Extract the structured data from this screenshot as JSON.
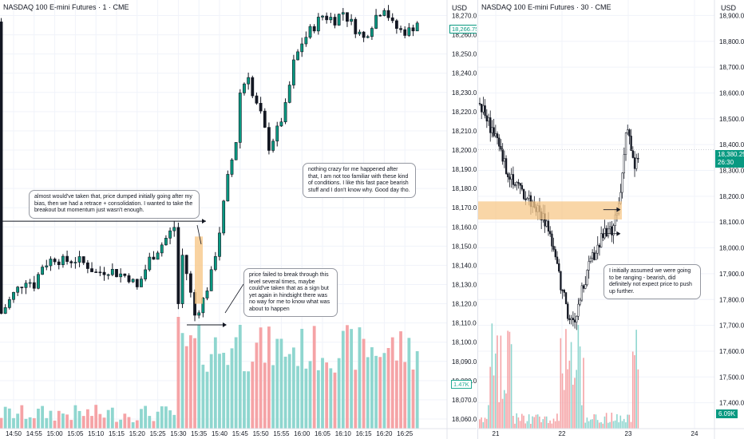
{
  "left_chart": {
    "title": "NASDAQ 100 E-mini Futures · 1 · CME",
    "currency": "USD",
    "last_price": "18,266.75",
    "volume_badge": "1.47K",
    "annotations": [
      "almost would've taken that, price dumped initially going after my bias, then we had a retrace + consolidation. I wanted to take the breakout but momentum just wasn't enough.",
      "nothing crazy for me happened after that, I am not too familiar with these kind of conditions. I like this fast pace bearish stuff and I don't know why. Good day tho.",
      "price failed to break through this level several times, maybe could've taken that as a sign but yet again in hindsight there was no way for me to know what was about to happen"
    ]
  },
  "right_chart": {
    "title": "NASDAQ 100 E-mini Futures · 30 · CME",
    "currency": "USD",
    "last_price": "18,380.25",
    "countdown": "26:30",
    "volume_badge": "6.09K",
    "annotations": [
      "I initially assumed we were going to be ranging - bearish, did definitely not expect price to push up further."
    ]
  },
  "chart_data": [
    {
      "type": "candlestick",
      "title": "NASDAQ 100 E-mini Futures · 1 · CME",
      "timeframe": "1",
      "y_axis_ticks": [
        18060,
        18070,
        18080,
        18090,
        18100,
        18110,
        18120,
        18130,
        18140,
        18150,
        18160,
        18170,
        18180,
        18190,
        18200,
        18210,
        18220,
        18230,
        18240,
        18250,
        18260,
        18270
      ],
      "ylim": [
        18055,
        18277
      ],
      "x_axis_ticks": [
        "14:50",
        "14:55",
        "15:00",
        "15:05",
        "15:10",
        "15:15",
        "15:20",
        "15:25",
        "15:30",
        "15:35",
        "15:40",
        "15:45",
        "15:50",
        "15:55",
        "16:00",
        "16:05",
        "16:10",
        "16:15",
        "16:20",
        "16:25"
      ],
      "close_path": [
        [
          "14:47",
          18115
        ],
        [
          "14:50",
          18125
        ],
        [
          "14:53",
          18133
        ],
        [
          "14:55",
          18130
        ],
        [
          "14:57",
          18140
        ],
        [
          "15:00",
          18144
        ],
        [
          "15:02",
          18142
        ],
        [
          "15:05",
          18143
        ],
        [
          "15:08",
          18140
        ],
        [
          "15:10",
          18136
        ],
        [
          "15:13",
          18138
        ],
        [
          "15:15",
          18136
        ],
        [
          "15:18",
          18134
        ],
        [
          "15:20",
          18128
        ],
        [
          "15:23",
          18143
        ],
        [
          "15:26",
          18151
        ],
        [
          "15:28",
          18157
        ],
        [
          "15:29",
          18160
        ],
        [
          "15:30",
          18120
        ],
        [
          "15:31",
          18145
        ],
        [
          "15:32",
          18136
        ],
        [
          "15:33",
          18125
        ],
        [
          "15:34",
          18114
        ],
        [
          "15:35",
          18118
        ],
        [
          "15:36",
          18122
        ],
        [
          "15:38",
          18135
        ],
        [
          "15:40",
          18158
        ],
        [
          "15:42",
          18185
        ],
        [
          "15:44",
          18205
        ],
        [
          "15:45",
          18230
        ],
        [
          "15:47",
          18240
        ],
        [
          "15:48",
          18228
        ],
        [
          "15:50",
          18218
        ],
        [
          "15:52",
          18202
        ],
        [
          "15:54",
          18210
        ],
        [
          "15:56",
          18222
        ],
        [
          "15:58",
          18245
        ],
        [
          "16:00",
          18256
        ],
        [
          "16:02",
          18262
        ],
        [
          "16:05",
          18270
        ],
        [
          "16:08",
          18268
        ],
        [
          "16:10",
          18272
        ],
        [
          "16:12",
          18266
        ],
        [
          "16:15",
          18258
        ],
        [
          "16:18",
          18270
        ],
        [
          "16:20",
          18275
        ],
        [
          "16:22",
          18265
        ],
        [
          "16:24",
          18262
        ],
        [
          "16:26",
          18262
        ],
        [
          "16:28",
          18266.75
        ]
      ],
      "volume_max": "1.47K"
    },
    {
      "type": "candlestick",
      "title": "NASDAQ 100 E-mini Futures · 30 · CME",
      "timeframe": "30",
      "y_axis_ticks": [
        17400,
        17500,
        17600,
        17700,
        17800,
        17900,
        18000,
        18100,
        18200,
        18300,
        18400,
        18500,
        18600,
        18700,
        18800,
        18900
      ],
      "ylim": [
        17300,
        18960
      ],
      "x_axis_ticks": [
        "21",
        "22",
        "23",
        "24"
      ],
      "close_path": [
        [
          0.0,
          18560
        ],
        [
          0.2,
          18440
        ],
        [
          0.35,
          18320
        ],
        [
          0.55,
          18230
        ],
        [
          0.75,
          18170
        ],
        [
          0.95,
          18090
        ],
        [
          1.05,
          17960
        ],
        [
          1.15,
          17830
        ],
        [
          1.25,
          17720
        ],
        [
          1.32,
          17700
        ],
        [
          1.45,
          17870
        ],
        [
          1.6,
          17980
        ],
        [
          1.72,
          18050
        ],
        [
          1.85,
          18060
        ],
        [
          1.95,
          18180
        ],
        [
          2.05,
          18500
        ],
        [
          2.15,
          18300
        ],
        [
          2.22,
          18380.25
        ]
      ],
      "highlight_zone": [
        18110,
        18180
      ]
    }
  ]
}
